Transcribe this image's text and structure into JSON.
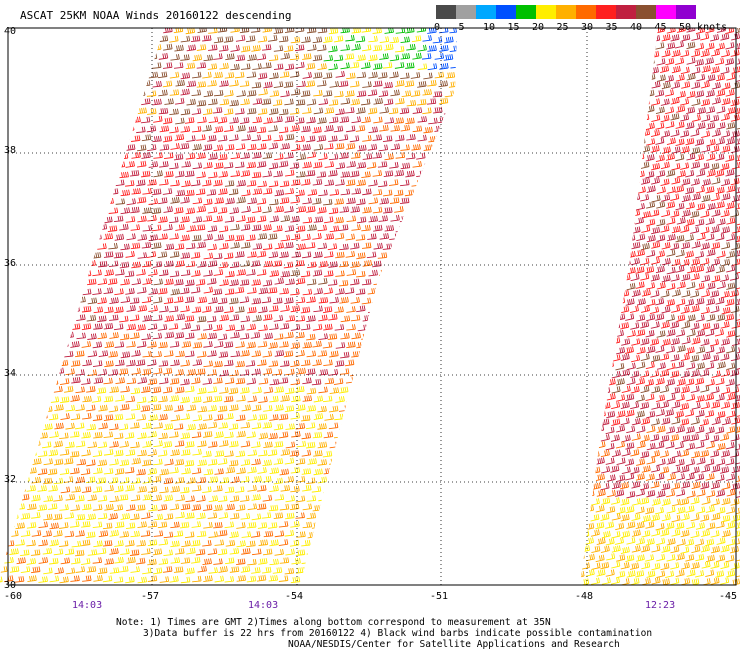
{
  "title": "ASCAT 25KM NOAA Winds 20160122 descending",
  "colorbar": {
    "colors": [
      "#4a4a4a",
      "#a0a0a0",
      "#00a8ff",
      "#0050ff",
      "#00c000",
      "#ffee00",
      "#ffb000",
      "#ff6a00",
      "#ff2020",
      "#c02040",
      "#8a5030",
      "#ff00ff",
      "#9000d0"
    ],
    "labels": [
      "0",
      "5",
      "10",
      "15",
      "20",
      "25",
      "30",
      "35",
      "40",
      "45",
      "50 knots"
    ]
  },
  "latitude_labels": [
    "40",
    "38",
    "36",
    "34",
    "32",
    "30"
  ],
  "longitude_labels": [
    "-60",
    "-57",
    "-54",
    "-51",
    "-48",
    "-45"
  ],
  "time_labels": [
    "14:03",
    "14:03",
    "12:23"
  ],
  "note_lines": [
    "Note: 1) Times are GMT 2)Times along bottom correspond to measurement at 35N",
    "3)Data buffer is 22 hrs from 20160122 4) Black wind barbs indicate possible contamination",
    "NOAA/NESDIS/Center for Satellite Applications and Research"
  ],
  "map_data": {
    "lat_range": [
      30,
      40
    ],
    "lon_range": [
      -60,
      -45
    ],
    "swaths": [
      {
        "name": "swath-west",
        "time": "14:03"
      },
      {
        "name": "swath-east",
        "time": "12:23"
      }
    ]
  }
}
